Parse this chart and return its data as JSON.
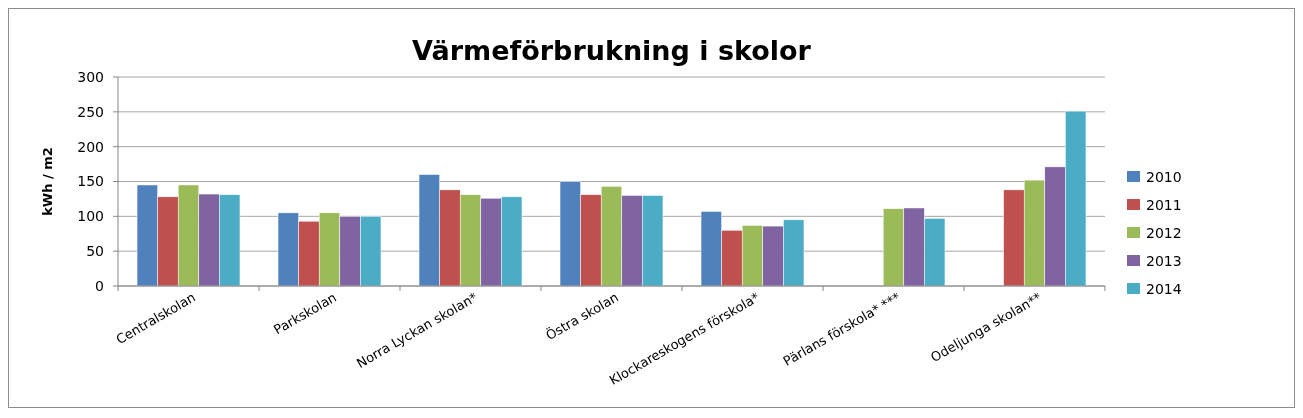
{
  "chart_data": {
    "type": "bar",
    "title": "Värmeförbrukning i skolor",
    "ylabel": "kWh / m2",
    "categories": [
      "Centralskolan",
      "Parkskolan",
      "Norra Lyckan skolan*",
      "Östra skolan",
      "Klockareskogens förskola*",
      "Pärlans förskola* ***",
      "Odeljunga skolan**"
    ],
    "series": [
      {
        "name": "2010",
        "color": "#4f81bd",
        "values": [
          145,
          105,
          160,
          150,
          107,
          null,
          null
        ]
      },
      {
        "name": "2011",
        "color": "#c0504d",
        "values": [
          128,
          93,
          138,
          131,
          80,
          null,
          138
        ]
      },
      {
        "name": "2012",
        "color": "#9bbb59",
        "values": [
          145,
          105,
          131,
          143,
          87,
          111,
          152
        ]
      },
      {
        "name": "2013",
        "color": "#8064a2",
        "values": [
          132,
          100,
          126,
          130,
          86,
          112,
          171
        ]
      },
      {
        "name": "2014",
        "color": "#4bacc6",
        "values": [
          131,
          100,
          128,
          130,
          95,
          97,
          251
        ]
      }
    ],
    "ylim": [
      0,
      300
    ],
    "yticks": [
      0,
      50,
      100,
      150,
      200,
      250,
      300
    ],
    "grid": "y",
    "legend": "right"
  }
}
